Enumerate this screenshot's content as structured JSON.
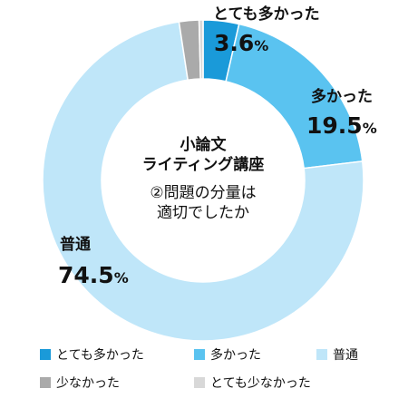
{
  "chart_data": {
    "type": "pie",
    "donut": true,
    "title_lines": [
      "小論文",
      "ライティング講座"
    ],
    "question_lines": [
      "②問題の分量は",
      "適切でしたか"
    ],
    "start_angle_deg": 0,
    "direction": "clockwise",
    "categories": [
      "とても多かった",
      "多かった",
      "普通",
      "少なかった",
      "とても少なかった"
    ],
    "values": [
      3.6,
      19.5,
      74.5,
      2.0,
      0.4
    ],
    "value_labels": [
      "3.6",
      "19.5",
      "74.5",
      "",
      ""
    ],
    "unit": "%",
    "colors": [
      "#1a9ad9",
      "#5ac3f0",
      "#bfe6f9",
      "#aaaaaa",
      "#d8d8d8"
    ],
    "legend_position": "bottom"
  }
}
